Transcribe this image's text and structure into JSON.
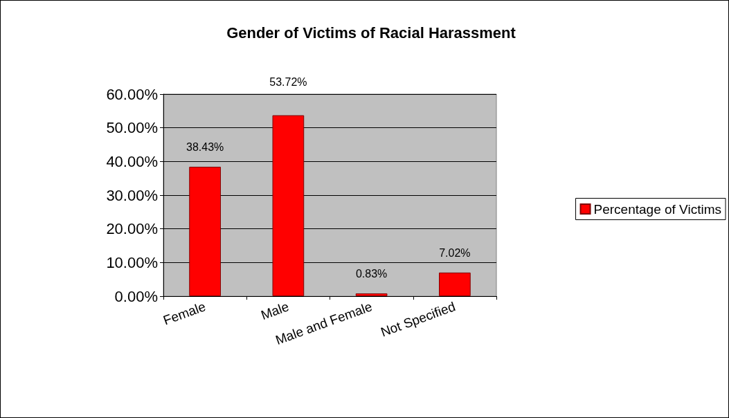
{
  "chart_data": {
    "type": "bar",
    "title": "Gender of Victims of Racial Harassment",
    "categories": [
      "Female",
      "Male",
      "Male and Female",
      "Not Specified"
    ],
    "series": [
      {
        "name": "Percentage of Victims",
        "color": "#ff0000",
        "values": [
          38.43,
          53.72,
          0.83,
          7.02
        ],
        "value_labels": [
          "38.43%",
          "53.72%",
          "0.83%",
          "7.02%"
        ]
      }
    ],
    "ylim": [
      0,
      60
    ],
    "yticks": [
      {
        "value": 0,
        "label": "0.00%"
      },
      {
        "value": 10,
        "label": "10.00%"
      },
      {
        "value": 20,
        "label": "20.00%"
      },
      {
        "value": 30,
        "label": "30.00%"
      },
      {
        "value": 40,
        "label": "40.00%"
      },
      {
        "value": 50,
        "label": "50.00%"
      },
      {
        "value": 60,
        "label": "60.00%"
      }
    ],
    "grid": "y",
    "legend": "right"
  }
}
